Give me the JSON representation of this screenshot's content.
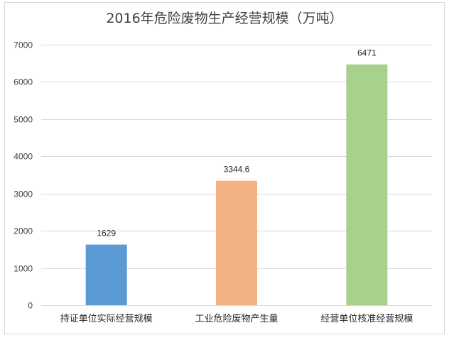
{
  "chart_data": {
    "type": "bar",
    "title": "2016年危险废物生产经营规模（万吨）",
    "categories": [
      "持证单位实际经营规模",
      "工业危险废物产生量",
      "经营单位核准经营规模"
    ],
    "values": [
      1629,
      3344.6,
      6471
    ],
    "value_labels": [
      "1629",
      "3344.6",
      "6471"
    ],
    "colors": [
      "#5b9bd5",
      "#f4b183",
      "#a9d18e"
    ],
    "ylim": [
      0,
      7000
    ],
    "yticks": [
      0,
      1000,
      2000,
      3000,
      4000,
      5000,
      6000,
      7000
    ],
    "xlabel": "",
    "ylabel": "",
    "grid": true,
    "gridline_color": "#d9d9d9"
  }
}
